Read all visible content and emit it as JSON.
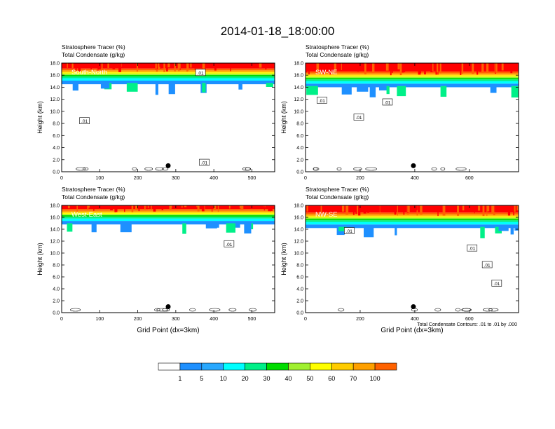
{
  "figure": {
    "title": "2014-01-18_18:00:00",
    "contour_note": "Total Condensate Contours: .01 to .01 by .000"
  },
  "colors": {
    "levels": [
      "#ffffff",
      "#1e90ff",
      "#28a8ff",
      "#00ffff",
      "#00f088",
      "#00dd00",
      "#a0f030",
      "#ffff00",
      "#ffcc00",
      "#ffa000",
      "#ff6200",
      "#ff0000"
    ],
    "contour": "#000000",
    "marker": "#000000"
  },
  "colorbar": {
    "labels": [
      "1",
      "5",
      "10",
      "20",
      "30",
      "40",
      "50",
      "60",
      "70",
      "100"
    ]
  },
  "chart_data": [
    {
      "type": "heatmap",
      "panel_label": "South-North",
      "header_line1": "Stratosphere Tracer   (%)",
      "header_line2": "Total Condensate   (g/kg)",
      "ylabel": "Height (km)",
      "xlabel": "",
      "xlim": [
        0,
        560
      ],
      "ylim": [
        0,
        18
      ],
      "xticks": [
        "0",
        "100",
        "200",
        "300",
        "400",
        "500"
      ],
      "xtick_values": [
        0,
        100,
        200,
        300,
        400,
        500
      ],
      "yticks": [
        "0.0",
        "2.0",
        "4.0",
        "6.0",
        "8.0",
        "10.0",
        "12.0",
        "14.0",
        "16.0",
        "18.0"
      ],
      "tracer_base_km": 14.5,
      "marker": {
        "x": 280,
        "y": 1.0
      },
      "contour_labels": [
        {
          "text": ".01",
          "x": 60,
          "y": 8.4
        },
        {
          "text": ".01",
          "x": 365,
          "y": 16.4
        },
        {
          "text": ".01",
          "x": 375,
          "y": 1.5
        }
      ]
    },
    {
      "type": "heatmap",
      "panel_label": "SW-NE",
      "header_line1": "Stratosphere Tracer   (%)",
      "header_line2": "Total Condensate   (g/kg)",
      "ylabel": "Height (km)",
      "xlabel": "",
      "xlim": [
        0,
        780
      ],
      "ylim": [
        0,
        18
      ],
      "xticks": [
        "0",
        "200",
        "400",
        "600"
      ],
      "xtick_values": [
        0,
        200,
        400,
        600
      ],
      "yticks": [
        "0.0",
        "2.0",
        "4.0",
        "6.0",
        "8.0",
        "10.0",
        "12.0",
        "14.0",
        "16.0",
        "18.0"
      ],
      "tracer_base_km": 14.0,
      "marker": {
        "x": 395,
        "y": 1.0
      },
      "contour_labels": [
        {
          "text": ".01",
          "x": 60,
          "y": 11.8
        },
        {
          "text": ".01",
          "x": 195,
          "y": 9.0
        },
        {
          "text": ".01",
          "x": 300,
          "y": 11.5
        }
      ]
    },
    {
      "type": "heatmap",
      "panel_label": "West-East",
      "header_line1": "Stratosphere Tracer   (%)",
      "header_line2": "Total Condensate   (g/kg)",
      "ylabel": "Height (km)",
      "xlabel": "Grid Point (dx=3km)",
      "xlim": [
        0,
        560
      ],
      "ylim": [
        0,
        18
      ],
      "xticks": [
        "0",
        "100",
        "200",
        "300",
        "400",
        "500"
      ],
      "xtick_values": [
        0,
        100,
        200,
        300,
        400,
        500
      ],
      "yticks": [
        "0.0",
        "2.0",
        "4.0",
        "6.0",
        "8.0",
        "10.0",
        "12.0",
        "14.0",
        "16.0",
        "18.0"
      ],
      "tracer_base_km": 14.8,
      "marker": {
        "x": 280,
        "y": 1.0
      },
      "contour_labels": [
        {
          "text": ".01",
          "x": 440,
          "y": 11.5
        }
      ]
    },
    {
      "type": "heatmap",
      "panel_label": "NW-SE",
      "header_line1": "Stratosphere Tracer   (%)",
      "header_line2": "Total Condensate   (g/kg)",
      "ylabel": "Height (km)",
      "xlabel": "Grid Point (dx=3km)",
      "xlim": [
        0,
        780
      ],
      "ylim": [
        0,
        18
      ],
      "xticks": [
        "0",
        "200",
        "400",
        "600"
      ],
      "xtick_values": [
        0,
        200,
        400,
        600
      ],
      "yticks": [
        "0.0",
        "2.0",
        "4.0",
        "6.0",
        "8.0",
        "10.0",
        "12.0",
        "14.0",
        "16.0",
        "18.0"
      ],
      "tracer_base_km": 14.2,
      "marker": {
        "x": 395,
        "y": 1.0
      },
      "contour_labels": [
        {
          "text": ".01",
          "x": 160,
          "y": 13.7
        },
        {
          "text": ".01",
          "x": 610,
          "y": 10.8
        },
        {
          "text": ".01",
          "x": 665,
          "y": 8.0
        },
        {
          "text": ".01",
          "x": 700,
          "y": 4.9
        }
      ]
    }
  ]
}
